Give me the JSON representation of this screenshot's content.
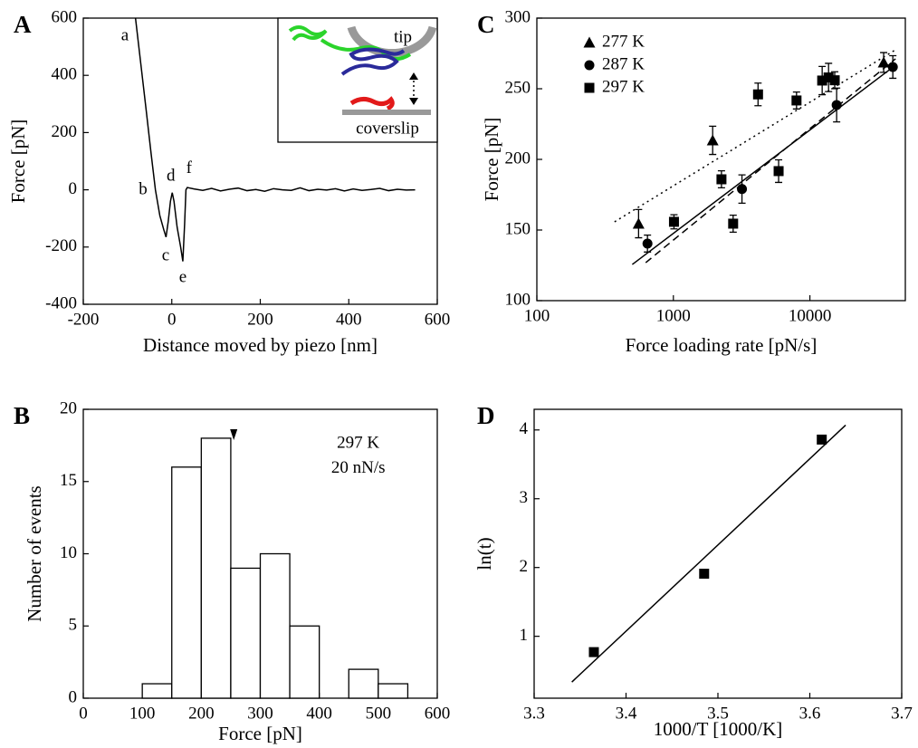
{
  "chart_data": [
    {
      "type": "line",
      "panel_label": "A",
      "xlabel": "Distance moved by piezo [nm]",
      "ylabel": "Force [pN]",
      "xlim": [
        -200,
        600
      ],
      "ylim": [
        -400,
        600
      ],
      "xticks": [
        -200,
        0,
        200,
        400,
        600
      ],
      "yticks": [
        -400,
        -200,
        0,
        200,
        400,
        600
      ],
      "series": [
        {
          "color": "#000000",
          "x": [
            -82,
            -70,
            -58,
            -47,
            -37,
            -27,
            -18,
            -13,
            -8,
            -3,
            1,
            5,
            12,
            20,
            25,
            29,
            32,
            35,
            50,
            70,
            90,
            110,
            130,
            150,
            170,
            190,
            210,
            230,
            250,
            270,
            290,
            310,
            330,
            350,
            370,
            390,
            410,
            430,
            450,
            470,
            490,
            510,
            530,
            550
          ],
          "values": [
            600,
            440,
            280,
            130,
            0,
            -90,
            -140,
            -165,
            -110,
            -40,
            -10,
            -40,
            -130,
            -200,
            -250,
            -120,
            0,
            8,
            3,
            -2,
            5,
            -4,
            2,
            6,
            -3,
            1,
            -5,
            4,
            0,
            -2,
            7,
            -3,
            2,
            -1,
            4,
            -4,
            3,
            -2,
            1,
            5,
            -3,
            2,
            -1,
            0
          ]
        }
      ],
      "annotations": [
        {
          "text": "a",
          "x": -106,
          "y": 537
        },
        {
          "text": "b",
          "x": -65,
          "y": -1
        },
        {
          "text": "c",
          "x": -14,
          "y": -232
        },
        {
          "text": "d",
          "x": -2,
          "y": 46
        },
        {
          "text": "e",
          "x": 25,
          "y": -308
        },
        {
          "text": "f",
          "x": 39,
          "y": 72
        }
      ],
      "inset_labels": [
        "tip",
        "coverslip"
      ]
    },
    {
      "type": "histogram",
      "panel_label": "B",
      "xlabel": "Force [pN]",
      "ylabel": "Number of events",
      "xlim": [
        0,
        600
      ],
      "ylim": [
        0,
        20
      ],
      "xticks": [
        0,
        100,
        200,
        300,
        400,
        500,
        600
      ],
      "yticks": [
        0,
        5,
        10,
        15,
        20
      ],
      "bins": [
        100,
        150,
        200,
        250,
        300,
        350,
        400,
        450,
        500,
        550
      ],
      "counts": [
        1,
        16,
        18,
        9,
        10,
        5,
        0,
        2,
        1
      ],
      "fill": "#ffffff",
      "color": "#000000",
      "marker_x": 255,
      "annotations": [
        {
          "text": "297 K",
          "x": 466,
          "y": 17.6
        },
        {
          "text": "20 nN/s",
          "x": 466,
          "y": 15.9
        }
      ]
    },
    {
      "type": "scatter",
      "panel_label": "C",
      "xlabel": "Force loading rate [pN/s]",
      "ylabel": "Force [pN]",
      "xscale": "log",
      "xlim": [
        100,
        50000
      ],
      "ylim": [
        100,
        300
      ],
      "xticks": [
        100,
        1000,
        10000
      ],
      "yticks": [
        100,
        150,
        200,
        250,
        300
      ],
      "legend": "upper left",
      "series": [
        {
          "name": "277 K",
          "color": "#000000",
          "marker": "triangle",
          "x": [
            556,
            1940,
            34700
          ],
          "values": [
            154.5,
            213.5,
            268.6
          ],
          "errors": [
            10,
            10,
            7
          ],
          "fit": {
            "dash": "dotted",
            "x": [
              371,
              42400
            ],
            "values": [
              155.8,
              277.6
            ]
          }
        },
        {
          "name": "287 K",
          "color": "#000000",
          "marker": "circle",
          "x": [
            646,
            3180,
            15700,
            40500
          ],
          "values": [
            140.4,
            179,
            238.5,
            265.4
          ],
          "errors": [
            6,
            10,
            12,
            8
          ],
          "fit": {
            "dash": "dashed",
            "x": [
              627,
              42400
            ],
            "values": [
              126.9,
              271.2
            ]
          }
        },
        {
          "name": "297 K",
          "color": "#000000",
          "marker": "square",
          "x": [
            1010,
            2250,
            2740,
            4170,
            5900,
            7980,
            12300,
            13700,
            15200
          ],
          "values": [
            155.8,
            185.9,
            154.5,
            246,
            191.7,
            241.7,
            255.8,
            258,
            256
          ],
          "errors": [
            5,
            6,
            6,
            8,
            8,
            6,
            10,
            10,
            6
          ],
          "fit": {
            "dash": "solid",
            "x": [
              500,
              42400
            ],
            "values": [
              125.6,
              266.7
            ]
          }
        }
      ]
    },
    {
      "type": "scatter",
      "panel_label": "D",
      "xlabel": "1000/T [1000/K]",
      "ylabel": "ln(t)",
      "xlim": [
        3.3,
        3.7
      ],
      "ylim": [
        0.1,
        4.3
      ],
      "xticks": [
        3.3,
        3.4,
        3.5,
        3.6,
        3.7
      ],
      "yticks": [
        1,
        2,
        3,
        4
      ],
      "series": [
        {
          "color": "#000000",
          "marker": "square",
          "x": [
            3.365,
            3.485,
            3.613
          ],
          "values": [
            0.77,
            1.91,
            3.86
          ],
          "fit": {
            "dash": "solid",
            "x": [
              3.341,
              3.639
            ],
            "values": [
              0.335,
              4.07
            ]
          }
        }
      ]
    }
  ]
}
